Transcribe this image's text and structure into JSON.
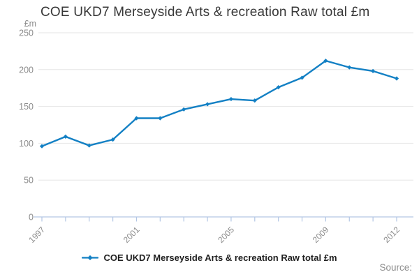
{
  "page_title": "COE UKD7 Merseyside Arts & recreation Raw total £m",
  "source_label": "Source:",
  "legend": {
    "label": "COE UKD7 Merseyside Arts & recreation Raw total £m"
  },
  "colors": {
    "line": "#1380c4",
    "grid": "#e6e6e6",
    "axis": "#b3c6e4",
    "tick_text": "#8c8c8c",
    "title_text": "#383838",
    "legend_text": "#1f1f1f",
    "source_text": "#8c8c8c"
  },
  "chart_data": {
    "type": "line",
    "title": "COE UKD7 Merseyside Arts & recreation Raw total £m",
    "xlabel": "",
    "ylabel": "£m",
    "x": [
      1997,
      1998,
      1999,
      2000,
      2001,
      2002,
      2003,
      2004,
      2005,
      2006,
      2007,
      2008,
      2009,
      2010,
      2011,
      2012
    ],
    "values": [
      96,
      109,
      97,
      105,
      134,
      134,
      146,
      153,
      160,
      158,
      176,
      189,
      212,
      203,
      198,
      188
    ],
    "series_name": "COE UKD7 Merseyside Arts & recreation Raw total £m",
    "ylim": [
      0,
      250
    ],
    "y_ticks": [
      0,
      50,
      100,
      150,
      200,
      250
    ],
    "x_tick_labels": [
      "1997",
      "2001",
      "2005",
      "2009",
      "2012"
    ],
    "grid": true,
    "marker": "diamond",
    "legend_position": "bottom"
  }
}
